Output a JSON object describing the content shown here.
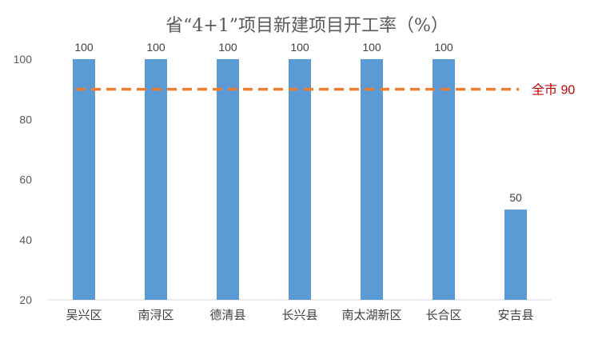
{
  "chart_data": {
    "type": "bar",
    "title": "省“4+1”项目新建项目开工率（%）",
    "categories": [
      "吴兴区",
      "南浔区",
      "德清县",
      "长兴县",
      "南太湖新区",
      "长合区",
      "安吉县"
    ],
    "values": [
      100,
      100,
      100,
      100,
      100,
      100,
      50
    ],
    "data_labels": [
      "100",
      "100",
      "100",
      "100",
      "100",
      "100",
      "50"
    ],
    "ylim": [
      20,
      100
    ],
    "yticks": [
      20,
      40,
      60,
      80,
      100
    ],
    "grid": false,
    "bar_color": "#5b9bd5",
    "reference_line": {
      "value": 90,
      "label": "全市 90",
      "color": "#ed7d31",
      "style": "dashed"
    }
  }
}
